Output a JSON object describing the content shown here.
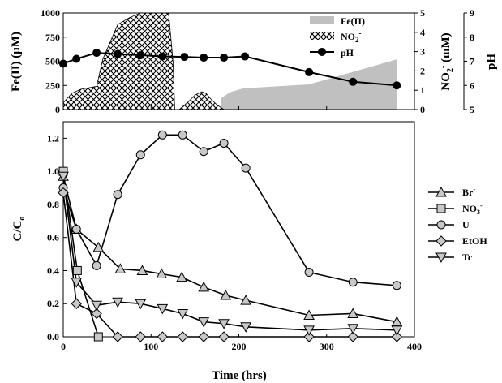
{
  "chart_data": [
    {
      "type": "area",
      "xlim": [
        0,
        400
      ],
      "left_axis": {
        "label": "Fe(II) (μM)",
        "ylim": [
          0,
          1000
        ],
        "ticks": [
          0,
          250,
          500,
          750,
          1000
        ],
        "tick_labels": [
          "0",
          "250",
          "500",
          "750",
          "1000"
        ]
      },
      "right_axis_1": {
        "label_main": "NO",
        "label_sub": "2",
        "label_sup": "-",
        "label_tail": " (mM)",
        "ylim": [
          0,
          5
        ],
        "ticks": [
          0,
          1,
          2,
          3,
          4,
          5
        ],
        "tick_labels": [
          "0",
          "1",
          "2",
          "3",
          "4",
          "5"
        ]
      },
      "right_axis_2": {
        "label": "pH",
        "ylim": [
          5,
          9
        ],
        "ticks": [
          5,
          6,
          7,
          8,
          9
        ],
        "tick_labels": [
          "5",
          "6",
          "7",
          "8",
          "9"
        ]
      },
      "series": [
        {
          "name": "Fe(II)",
          "axis": "left",
          "style": "area",
          "color": "#c0c0c0",
          "x": [
            180,
            190,
            205,
            280,
            330,
            380
          ],
          "y": [
            120,
            180,
            220,
            260,
            390,
            520
          ]
        },
        {
          "name": "NO",
          "name_sub": "2",
          "name_sup": "-",
          "axis": "right_1",
          "style": "crosshatch-area",
          "x": [
            0,
            10,
            20,
            38,
            45,
            62,
            75,
            88,
            110,
            112,
            120,
            125,
            127,
            132,
            142,
            150,
            158,
            163,
            168,
            175,
            183
          ],
          "y": [
            0.35,
            0.85,
            1.05,
            1.2,
            2.6,
            4.4,
            4.75,
            5.0,
            5.0,
            5.0,
            5.0,
            2.5,
            0.0,
            0.0,
            0.38,
            0.75,
            0.92,
            0.82,
            0.55,
            0.25,
            0.0
          ]
        },
        {
          "name": "pH",
          "axis": "right_2",
          "style": "line-marker",
          "marker": "circle",
          "x": [
            0,
            15,
            38,
            62,
            88,
            113,
            138,
            160,
            183,
            207,
            280,
            330,
            380
          ],
          "y": [
            6.9,
            7.1,
            7.35,
            7.3,
            7.25,
            7.2,
            7.18,
            7.15,
            7.15,
            7.2,
            6.55,
            6.15,
            6.0
          ]
        }
      ]
    },
    {
      "type": "line",
      "xlabel": "Time (hrs)",
      "ylabel": "C/C",
      "ylabel_sub": "o",
      "xlim": [
        0,
        400
      ],
      "ylim": [
        0,
        1.3
      ],
      "x_ticks": [
        0,
        100,
        200,
        300,
        400
      ],
      "x_tick_labels": [
        "0",
        "100",
        "200",
        "300",
        "400"
      ],
      "y_ticks": [
        0,
        0.2,
        0.4,
        0.6,
        0.8,
        1.0,
        1.2
      ],
      "y_tick_labels": [
        "0.0",
        "0.2",
        "0.4",
        "0.6",
        "0.8",
        "1.0",
        "1.2"
      ],
      "legend_position": "right",
      "series": [
        {
          "name": "Br",
          "name_sup": "-",
          "marker": "triangle-up",
          "x": [
            0,
            15,
            40,
            65,
            90,
            112,
            135,
            160,
            185,
            208,
            280,
            330,
            380
          ],
          "y": [
            0.97,
            0.65,
            0.54,
            0.41,
            0.4,
            0.38,
            0.36,
            0.3,
            0.25,
            0.22,
            0.13,
            0.14,
            0.09
          ]
        },
        {
          "name": "NO",
          "name_sub": "3",
          "name_sup": "-",
          "marker": "square",
          "x": [
            0,
            16,
            40
          ],
          "y": [
            1.0,
            0.4,
            0.0
          ]
        },
        {
          "name": "U",
          "marker": "circle",
          "x": [
            0,
            15,
            38,
            62,
            88,
            113,
            136,
            160,
            183,
            208,
            280,
            330,
            380
          ],
          "y": [
            0.9,
            0.65,
            0.43,
            0.86,
            1.1,
            1.22,
            1.22,
            1.12,
            1.17,
            1.02,
            0.39,
            0.33,
            0.31
          ]
        },
        {
          "name": "EtOH",
          "marker": "diamond",
          "x": [
            0,
            15,
            38,
            62,
            88,
            113,
            136,
            160,
            183,
            280,
            330,
            380
          ],
          "y": [
            0.87,
            0.2,
            0.14,
            0.0,
            0.0,
            0.0,
            0.0,
            0.0,
            0.0,
            0.0,
            0.0,
            0.0
          ]
        },
        {
          "name": "Tc",
          "marker": "triangle-down",
          "x": [
            0,
            15,
            38,
            62,
            88,
            113,
            136,
            160,
            183,
            208,
            280,
            330,
            380
          ],
          "y": [
            0.97,
            0.33,
            0.19,
            0.21,
            0.2,
            0.17,
            0.14,
            0.09,
            0.08,
            0.06,
            0.04,
            0.05,
            0.04
          ]
        }
      ]
    }
  ]
}
